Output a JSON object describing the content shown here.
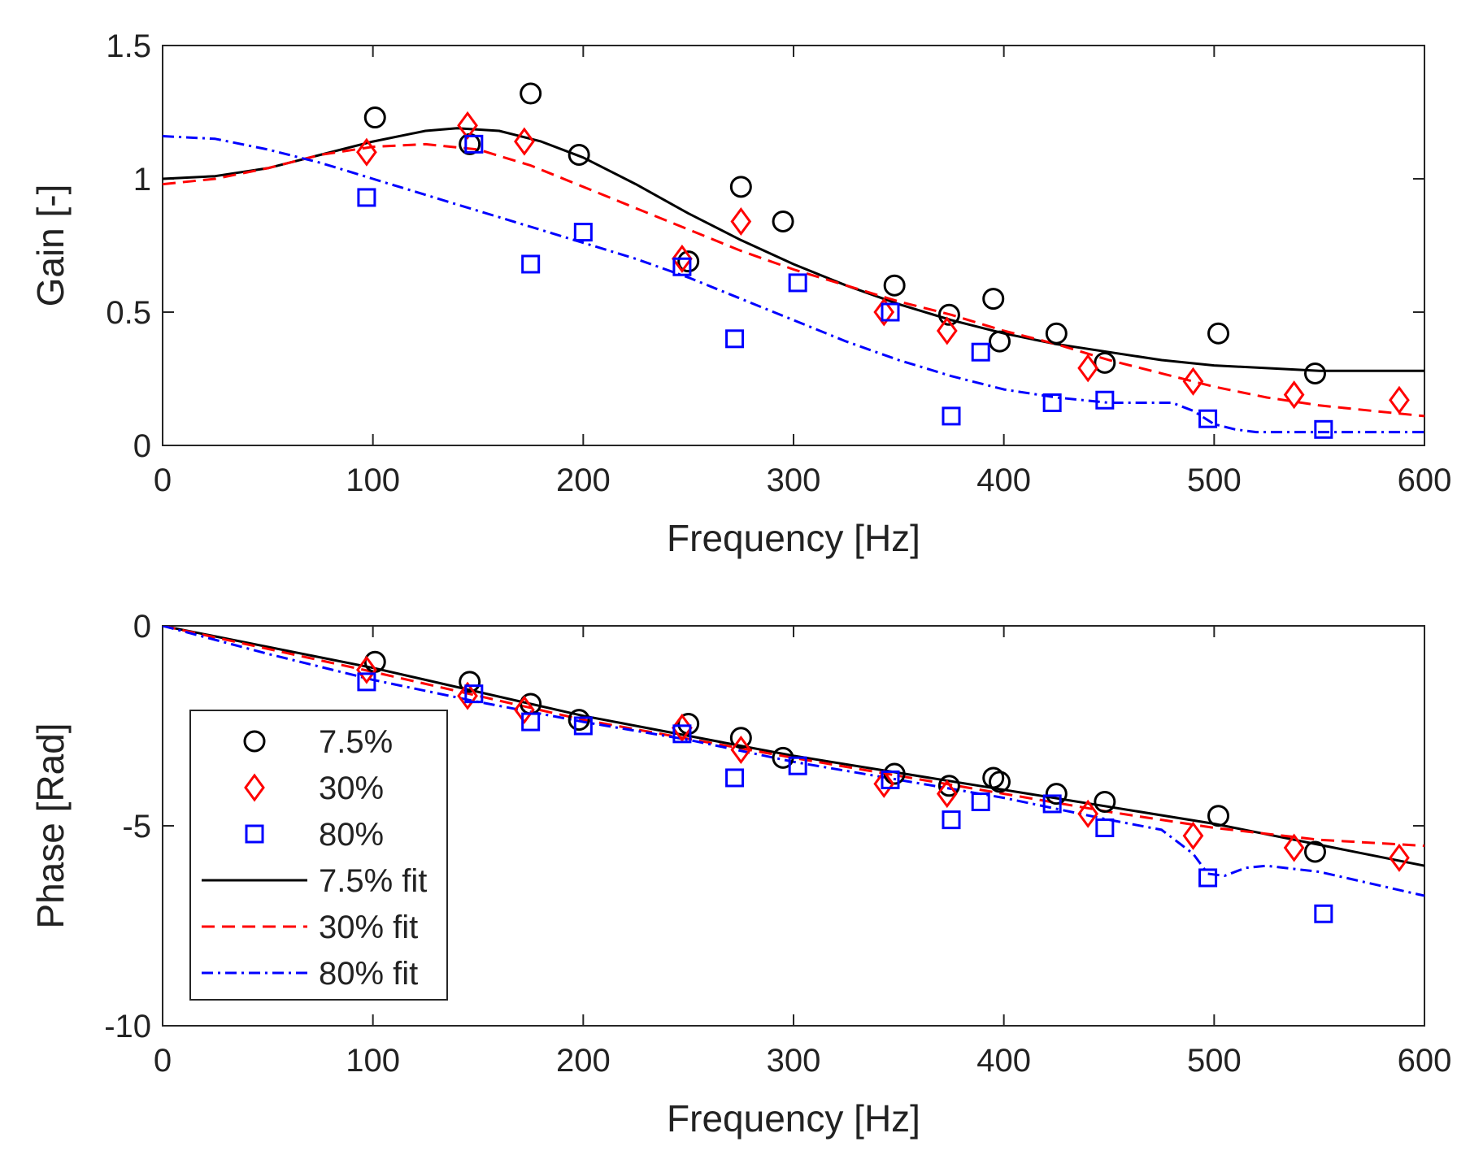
{
  "chart_data": [
    {
      "type": "line",
      "xlabel": "Frequency [Hz]",
      "ylabel": "Gain [-]",
      "xlim": [
        0,
        600
      ],
      "ylim": [
        0,
        1.5
      ],
      "xticks": [
        0,
        100,
        200,
        300,
        400,
        500,
        600
      ],
      "xtick_labels": [
        "0",
        "100",
        "200",
        "300",
        "400",
        "500",
        "600"
      ],
      "yticks": [
        0,
        0.5,
        1,
        1.5
      ],
      "ytick_labels": [
        "0",
        "0.5",
        "1",
        "1.5"
      ],
      "grid": false,
      "series": [
        {
          "name": "7.5%",
          "kind": "marker",
          "marker": "circle",
          "color": "#000000",
          "x": [
            101,
            146,
            175,
            198,
            250,
            275,
            295,
            348,
            374,
            395,
            398,
            425,
            448,
            502,
            548
          ],
          "y": [
            1.23,
            1.13,
            1.32,
            1.09,
            0.69,
            0.97,
            0.84,
            0.6,
            0.49,
            0.55,
            0.39,
            0.42,
            0.31,
            0.42,
            0.27
          ]
        },
        {
          "name": "30%",
          "kind": "marker",
          "marker": "diamond",
          "color": "#ff0000",
          "x": [
            97,
            145,
            172,
            247,
            275,
            343,
            373,
            440,
            490,
            538,
            588
          ],
          "y": [
            1.1,
            1.2,
            1.14,
            0.7,
            0.84,
            0.5,
            0.43,
            0.29,
            0.24,
            0.19,
            0.17
          ]
        },
        {
          "name": "80%",
          "kind": "marker",
          "marker": "square",
          "color": "#0000ff",
          "x": [
            97,
            148,
            175,
            200,
            247,
            272,
            302,
            346,
            375,
            389,
            423,
            448,
            497,
            552
          ],
          "y": [
            0.93,
            1.13,
            0.68,
            0.8,
            0.67,
            0.4,
            0.61,
            0.5,
            0.11,
            0.35,
            0.16,
            0.17,
            0.1,
            0.06
          ]
        },
        {
          "name": "7.5% fit",
          "kind": "line",
          "dash": "solid",
          "color": "#000000",
          "x": [
            0,
            25,
            50,
            75,
            100,
            125,
            140,
            160,
            180,
            200,
            225,
            250,
            275,
            300,
            325,
            350,
            375,
            400,
            425,
            450,
            475,
            500,
            525,
            550,
            575,
            600
          ],
          "y": [
            1.0,
            1.01,
            1.04,
            1.09,
            1.14,
            1.18,
            1.19,
            1.18,
            1.14,
            1.08,
            0.98,
            0.87,
            0.77,
            0.68,
            0.6,
            0.53,
            0.47,
            0.42,
            0.38,
            0.35,
            0.32,
            0.3,
            0.29,
            0.28,
            0.28,
            0.28
          ]
        },
        {
          "name": "30% fit",
          "kind": "line",
          "dash": "dashed",
          "color": "#ff0000",
          "x": [
            0,
            25,
            50,
            75,
            100,
            125,
            150,
            175,
            200,
            225,
            250,
            275,
            300,
            325,
            350,
            375,
            400,
            425,
            450,
            475,
            500,
            525,
            550,
            575,
            600
          ],
          "y": [
            0.98,
            1.0,
            1.04,
            1.09,
            1.12,
            1.13,
            1.11,
            1.05,
            0.97,
            0.89,
            0.81,
            0.73,
            0.66,
            0.6,
            0.54,
            0.49,
            0.43,
            0.38,
            0.32,
            0.27,
            0.22,
            0.18,
            0.15,
            0.13,
            0.11
          ]
        },
        {
          "name": "80% fit",
          "kind": "line",
          "dash": "dashdot",
          "color": "#0000ff",
          "x": [
            0,
            25,
            50,
            75,
            100,
            125,
            150,
            175,
            200,
            225,
            250,
            275,
            300,
            325,
            350,
            375,
            400,
            425,
            450,
            470,
            480,
            490,
            500,
            510,
            520,
            550,
            600
          ],
          "y": [
            1.16,
            1.15,
            1.11,
            1.06,
            1.0,
            0.94,
            0.88,
            0.82,
            0.76,
            0.7,
            0.63,
            0.55,
            0.47,
            0.39,
            0.32,
            0.26,
            0.21,
            0.18,
            0.16,
            0.16,
            0.16,
            0.13,
            0.08,
            0.06,
            0.05,
            0.05,
            0.05
          ]
        }
      ]
    },
    {
      "type": "line",
      "xlabel": "Frequency [Hz]",
      "ylabel": "Phase [Rad]",
      "xlim": [
        0,
        600
      ],
      "ylim": [
        -10,
        0
      ],
      "xticks": [
        0,
        100,
        200,
        300,
        400,
        500,
        600
      ],
      "xtick_labels": [
        "0",
        "100",
        "200",
        "300",
        "400",
        "500",
        "600"
      ],
      "yticks": [
        -10,
        -5,
        0
      ],
      "ytick_labels": [
        "-10",
        "-5",
        "0"
      ],
      "grid": false,
      "legend_position": "bottom-left",
      "series": [
        {
          "name": "7.5%",
          "kind": "marker",
          "marker": "circle",
          "color": "#000000",
          "x": [
            101,
            146,
            175,
            198,
            250,
            275,
            295,
            348,
            374,
            395,
            398,
            425,
            448,
            502,
            548
          ],
          "y": [
            -0.9,
            -1.4,
            -1.95,
            -2.35,
            -2.45,
            -2.8,
            -3.3,
            -3.7,
            -4.0,
            -3.8,
            -3.9,
            -4.2,
            -4.4,
            -4.75,
            -5.65
          ]
        },
        {
          "name": "30%",
          "kind": "marker",
          "marker": "diamond",
          "color": "#ff0000",
          "x": [
            97,
            145,
            172,
            247,
            275,
            343,
            373,
            440,
            490,
            538,
            588
          ],
          "y": [
            -1.1,
            -1.75,
            -2.1,
            -2.55,
            -3.1,
            -3.95,
            -4.2,
            -4.7,
            -5.25,
            -5.55,
            -5.8
          ]
        },
        {
          "name": "80%",
          "kind": "marker",
          "marker": "square",
          "color": "#0000ff",
          "x": [
            97,
            148,
            175,
            200,
            247,
            272,
            302,
            346,
            375,
            389,
            423,
            448,
            497,
            552
          ],
          "y": [
            -1.4,
            -1.7,
            -2.4,
            -2.5,
            -2.7,
            -3.8,
            -3.5,
            -3.85,
            -4.85,
            -4.4,
            -4.45,
            -5.05,
            -6.3,
            -7.2
          ]
        },
        {
          "name": "7.5% fit",
          "kind": "line",
          "dash": "solid",
          "color": "#000000",
          "x": [
            0,
            100,
            200,
            300,
            400,
            500,
            600
          ],
          "y": [
            0,
            -1.05,
            -2.25,
            -3.25,
            -4.1,
            -4.95,
            -6.0
          ]
        },
        {
          "name": "30% fit",
          "kind": "line",
          "dash": "dashed",
          "color": "#ff0000",
          "x": [
            0,
            100,
            200,
            300,
            400,
            450,
            500,
            550,
            600
          ],
          "y": [
            0,
            -1.15,
            -2.35,
            -3.3,
            -4.2,
            -4.65,
            -5.05,
            -5.35,
            -5.5
          ]
        },
        {
          "name": "80% fit",
          "kind": "line",
          "dash": "dashdot",
          "color": "#0000ff",
          "x": [
            0,
            50,
            100,
            150,
            200,
            250,
            300,
            350,
            400,
            450,
            475,
            490,
            497,
            505,
            515,
            525,
            550,
            575,
            600
          ],
          "y": [
            0,
            -0.7,
            -1.35,
            -1.9,
            -2.4,
            -2.85,
            -3.4,
            -3.85,
            -4.3,
            -4.85,
            -5.1,
            -5.7,
            -6.2,
            -6.25,
            -6.05,
            -6.0,
            -6.15,
            -6.45,
            -6.75
          ]
        }
      ]
    }
  ],
  "legend": {
    "entries": [
      {
        "label": "7.5%",
        "marker": "circle",
        "color": "#000000"
      },
      {
        "label": "30%",
        "marker": "diamond",
        "color": "#ff0000"
      },
      {
        "label": "80%",
        "marker": "square",
        "color": "#0000ff"
      },
      {
        "label": "7.5% fit",
        "line": "solid",
        "color": "#000000"
      },
      {
        "label": "30% fit",
        "line": "dashed",
        "color": "#ff0000"
      },
      {
        "label": "80% fit",
        "line": "dashdot",
        "color": "#0000ff"
      }
    ]
  }
}
